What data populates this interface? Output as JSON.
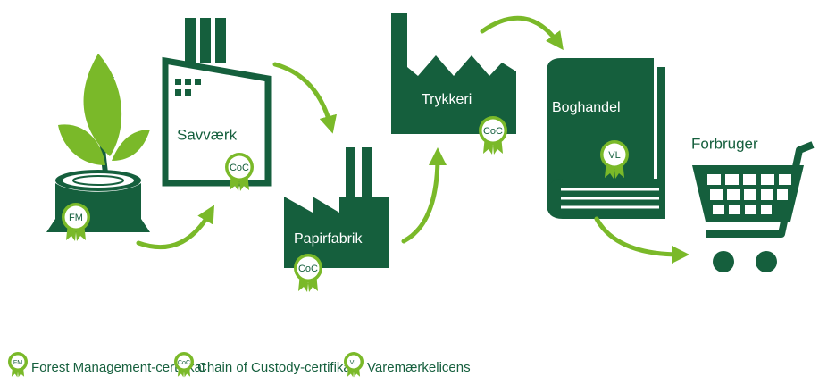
{
  "nodes": [
    {
      "badge": "FM"
    },
    {
      "label": "Savværk",
      "badge": "CoC"
    },
    {
      "label": "Papirfabrik",
      "badge": "CoC"
    },
    {
      "label": "Trykkeri",
      "badge": "CoC"
    },
    {
      "label": "Boghandel",
      "badge": "VL"
    },
    {
      "label": "Forbruger"
    }
  ],
  "legend": [
    {
      "badge": "FM",
      "label": "Forest Management-certifikat"
    },
    {
      "badge": "CoC",
      "label": "Chain of Custody-certifikat"
    },
    {
      "badge": "VL",
      "label": "Varemærkelicens"
    }
  ]
}
